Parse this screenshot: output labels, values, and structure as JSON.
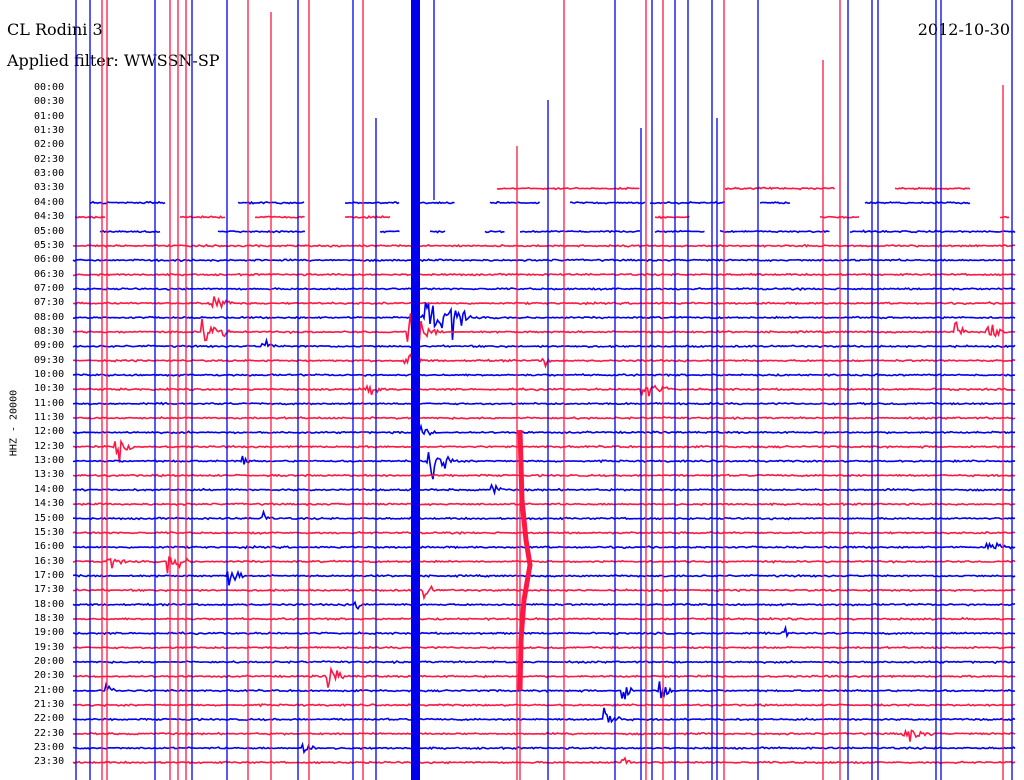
{
  "header": {
    "station": "CL Rodini 3",
    "date": "2012-10-30",
    "filter": "Applied filter: WWSSN-SP"
  },
  "channel": "HHZ - 20000",
  "time_labels": [
    "00:00",
    "00:30",
    "01:00",
    "01:30",
    "02:00",
    "02:30",
    "03:00",
    "03:30",
    "04:00",
    "04:30",
    "05:00",
    "05:30",
    "06:00",
    "06:30",
    "07:00",
    "07:30",
    "08:00",
    "08:30",
    "09:00",
    "09:30",
    "10:00",
    "10:30",
    "11:00",
    "11:30",
    "12:00",
    "12:30",
    "13:00",
    "13:30",
    "14:00",
    "14:30",
    "15:00",
    "15:30",
    "16:00",
    "16:30",
    "17:00",
    "17:30",
    "18:00",
    "18:30",
    "19:00",
    "19:30",
    "20:00",
    "20:30",
    "21:00",
    "21:30",
    "22:00",
    "22:30",
    "23:00",
    "23:30"
  ],
  "colors": {
    "trace_a": "#ff1744",
    "trace_b": "#0000ee",
    "text": "#000000",
    "background": "#ffffff"
  }
}
